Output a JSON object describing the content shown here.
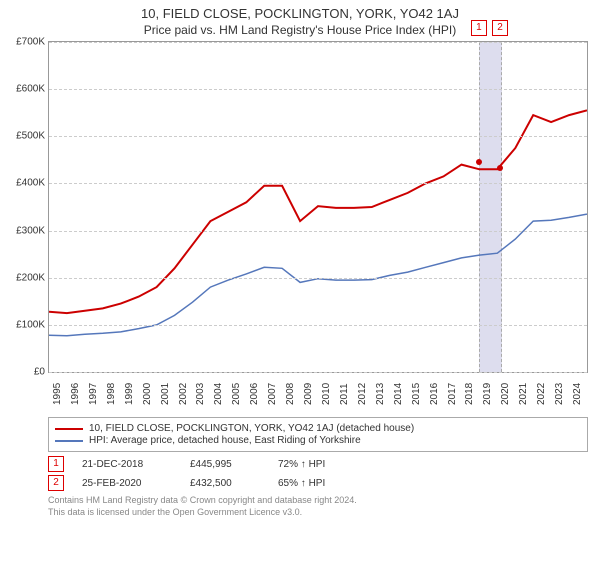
{
  "title": "10, FIELD CLOSE, POCKLINGTON, YORK, YO42 1AJ",
  "subtitle": "Price paid vs. HM Land Registry's House Price Index (HPI)",
  "chart": {
    "type": "line",
    "y_min": 0,
    "y_max": 700000,
    "y_ticks": [
      0,
      100000,
      200000,
      300000,
      400000,
      500000,
      600000,
      700000
    ],
    "y_tick_labels": [
      "£0",
      "£100K",
      "£200K",
      "£300K",
      "£400K",
      "£500K",
      "£600K",
      "£700K"
    ],
    "x_min": 1995,
    "x_max": 2025,
    "x_ticks": [
      1995,
      1996,
      1997,
      1998,
      1999,
      2000,
      2001,
      2002,
      2003,
      2004,
      2005,
      2006,
      2007,
      2008,
      2009,
      2010,
      2011,
      2012,
      2013,
      2014,
      2015,
      2016,
      2017,
      2018,
      2019,
      2020,
      2021,
      2022,
      2023,
      2024
    ],
    "grid_color": "#cccccc",
    "background_color": "#ffffff",
    "border_color": "#999999",
    "series": [
      {
        "name": "property",
        "label": "10, FIELD CLOSE, POCKLINGTON, YORK, YO42 1AJ (detached house)",
        "color": "#cc0000",
        "width": 2,
        "data": [
          [
            1995,
            128000
          ],
          [
            1996,
            125000
          ],
          [
            1997,
            130000
          ],
          [
            1998,
            135000
          ],
          [
            1999,
            145000
          ],
          [
            2000,
            160000
          ],
          [
            2001,
            180000
          ],
          [
            2002,
            220000
          ],
          [
            2003,
            270000
          ],
          [
            2004,
            320000
          ],
          [
            2005,
            340000
          ],
          [
            2006,
            360000
          ],
          [
            2007,
            395000
          ],
          [
            2008,
            395000
          ],
          [
            2009,
            320000
          ],
          [
            2010,
            352000
          ],
          [
            2011,
            348000
          ],
          [
            2012,
            348000
          ],
          [
            2013,
            350000
          ],
          [
            2014,
            365000
          ],
          [
            2015,
            380000
          ],
          [
            2016,
            400000
          ],
          [
            2017,
            415000
          ],
          [
            2018,
            440000
          ],
          [
            2019,
            430000
          ],
          [
            2020,
            430000
          ],
          [
            2021,
            475000
          ],
          [
            2022,
            545000
          ],
          [
            2023,
            530000
          ],
          [
            2024,
            545000
          ],
          [
            2025,
            555000
          ]
        ]
      },
      {
        "name": "hpi",
        "label": "HPI: Average price, detached house, East Riding of Yorkshire",
        "color": "#5577bb",
        "width": 1.5,
        "data": [
          [
            1995,
            78000
          ],
          [
            1996,
            77000
          ],
          [
            1997,
            80000
          ],
          [
            1998,
            82000
          ],
          [
            1999,
            85000
          ],
          [
            2000,
            92000
          ],
          [
            2001,
            100000
          ],
          [
            2002,
            120000
          ],
          [
            2003,
            148000
          ],
          [
            2004,
            180000
          ],
          [
            2005,
            195000
          ],
          [
            2006,
            208000
          ],
          [
            2007,
            222000
          ],
          [
            2008,
            220000
          ],
          [
            2009,
            190000
          ],
          [
            2010,
            198000
          ],
          [
            2011,
            195000
          ],
          [
            2012,
            195000
          ],
          [
            2013,
            196000
          ],
          [
            2014,
            205000
          ],
          [
            2015,
            212000
          ],
          [
            2016,
            222000
          ],
          [
            2017,
            232000
          ],
          [
            2018,
            242000
          ],
          [
            2019,
            248000
          ],
          [
            2020,
            252000
          ],
          [
            2021,
            282000
          ],
          [
            2022,
            320000
          ],
          [
            2023,
            322000
          ],
          [
            2024,
            328000
          ],
          [
            2025,
            335000
          ]
        ]
      }
    ],
    "markers": [
      {
        "id": "1",
        "x": 2018.97,
        "price": 445995
      },
      {
        "id": "2",
        "x": 2020.15,
        "price": 432500
      }
    ]
  },
  "legend": {
    "items": [
      {
        "label": "10, FIELD CLOSE, POCKLINGTON, YORK, YO42 1AJ (detached house)",
        "color": "#cc0000"
      },
      {
        "label": "HPI: Average price, detached house, East Riding of Yorkshire",
        "color": "#5577bb"
      }
    ]
  },
  "sales": [
    {
      "id": "1",
      "date": "21-DEC-2018",
      "price": "£445,995",
      "vs_hpi": "72% ↑ HPI"
    },
    {
      "id": "2",
      "date": "25-FEB-2020",
      "price": "£432,500",
      "vs_hpi": "65% ↑ HPI"
    }
  ],
  "footer": {
    "line1": "Contains HM Land Registry data © Crown copyright and database right 2024.",
    "line2": "This data is licensed under the Open Government Licence v3.0."
  }
}
